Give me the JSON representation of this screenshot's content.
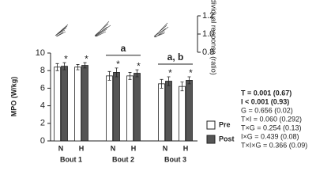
{
  "chart_data": {
    "type": "bar",
    "y_label": "MPO (W/kg)",
    "categories": [
      "N",
      "H",
      "N",
      "H",
      "N",
      "H"
    ],
    "group_labels": [
      "Bout 1",
      "Bout 2",
      "Bout 3"
    ],
    "group_annotations": [
      null,
      "a",
      "a, b"
    ],
    "series": [
      {
        "name": "Pre",
        "color": "#ffffff",
        "values": [
          8.4,
          8.4,
          7.4,
          7.4,
          6.5,
          6.2
        ],
        "errors": [
          0.4,
          0.3,
          0.5,
          0.4,
          0.5,
          0.5
        ]
      },
      {
        "name": "Post",
        "color": "#555555",
        "values": [
          8.5,
          8.6,
          7.8,
          7.7,
          6.8,
          6.9
        ],
        "errors": [
          0.4,
          0.3,
          0.5,
          0.4,
          0.5,
          0.4
        ],
        "significance": [
          "*",
          "*",
          "*",
          "*",
          "*",
          "*"
        ]
      }
    ],
    "ylim": [
      0,
      10
    ],
    "yticks": [
      0,
      2,
      4,
      6,
      8,
      10
    ],
    "legend": "lower right",
    "response_axis": {
      "label": "Individual response (ratio)",
      "ylim": [
        0.8,
        1.2
      ],
      "yticks": [
        0.8,
        {
          "value": 1.0,
          "label": "1.0"
        },
        1.2
      ]
    },
    "stats": [
      {
        "text": "T = 0.001 (0.67)",
        "bold": true
      },
      {
        "text": "I < 0.001 (0.93)",
        "bold": true
      },
      {
        "text": "G = 0.656 (0.02)",
        "bold": false
      },
      {
        "text": "T×I = 0.060 (0.292)",
        "bold": false
      },
      {
        "text": "T×G = 0.254 (0.13)",
        "bold": false
      },
      {
        "text": "I×G = 0.439 (0.08)",
        "bold": false
      },
      {
        "text": "T×I×G = 0.366 (0.09)",
        "bold": false
      }
    ]
  }
}
